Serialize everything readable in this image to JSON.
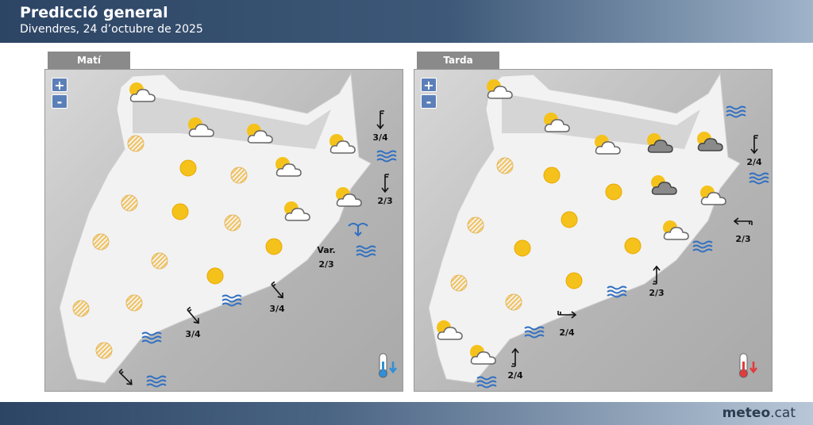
{
  "header": {
    "title": "Predicció general",
    "subtitle": "Divendres, 24 d’octubre de 2025"
  },
  "footer": {
    "brand_bold": "meteo",
    "brand_rest": ".cat"
  },
  "colors": {
    "sun": "#f5c21b",
    "sea": "#2f6fc2",
    "cold": "#2f8fd8",
    "warm": "#e23b3b"
  },
  "panels": [
    {
      "tab": "Matí",
      "zoom_in": "+",
      "zoom_out": "-",
      "temperature_trend": "down-cold",
      "wind_labels": [
        "3/4",
        "2/3",
        "Var.",
        "2/3",
        "3/4",
        "3/4"
      ]
    },
    {
      "tab": "Tarda",
      "zoom_in": "+",
      "zoom_out": "-",
      "temperature_trend": "down-warm",
      "wind_labels": [
        "2/4",
        "2/3",
        "2/3",
        "2/4",
        "2/4"
      ]
    }
  ],
  "icon_types": {
    "sun": "sunny",
    "suncloud": "partly-cloudy",
    "haze": "haze",
    "overcast": "mostly-cloudy",
    "waves": "sea-state",
    "wind": "wind-arrow",
    "variable": "variable-sea"
  }
}
